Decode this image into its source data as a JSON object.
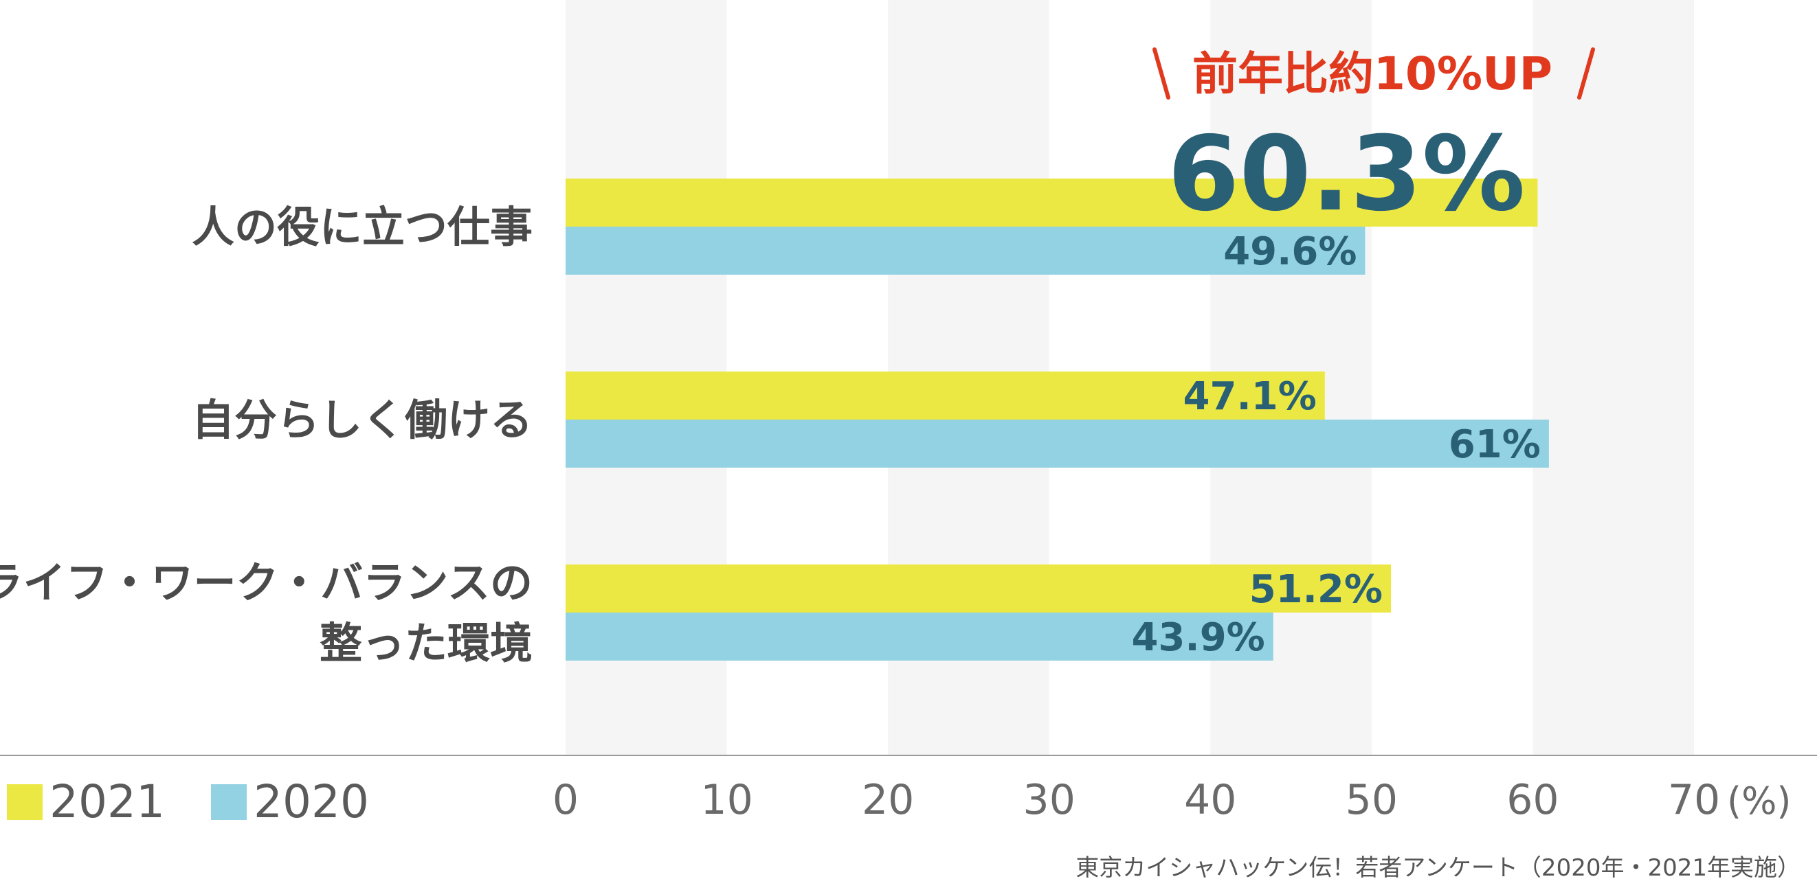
{
  "chart_data": {
    "type": "bar",
    "orientation": "horizontal",
    "categories": [
      [
        "人の役に立つ仕事"
      ],
      [
        "自分らしく働ける"
      ],
      [
        "ライフ・ワーク・バランスの",
        "整った環境"
      ]
    ],
    "series": [
      {
        "name": "2021",
        "color": "#ece843",
        "values": [
          60.3,
          47.1,
          51.2
        ],
        "labels": [
          "60.3%",
          "47.1%",
          "51.2%"
        ]
      },
      {
        "name": "2020",
        "color": "#92d2e3",
        "values": [
          49.6,
          61,
          43.9
        ],
        "labels": [
          "49.6%",
          "61%",
          "43.9%"
        ]
      }
    ],
    "xlim": [
      0,
      70
    ],
    "xticks": [
      "0",
      "10",
      "20",
      "30",
      "40",
      "50",
      "60",
      "70"
    ],
    "unit": "(%)",
    "grid": "alternating bands",
    "legend_placement": "bottom-left",
    "highlight": {
      "category_index": 0,
      "series_index": 0
    },
    "callout": "前年比約10%UP",
    "source": "東京カイシャハッケン伝！若者アンケート（2020年・2021年実施）"
  },
  "colors": {
    "band": "#f5f5f5",
    "axis": "#9a9a9a",
    "value_label": "#2a6075",
    "callout": "#e0391e"
  }
}
